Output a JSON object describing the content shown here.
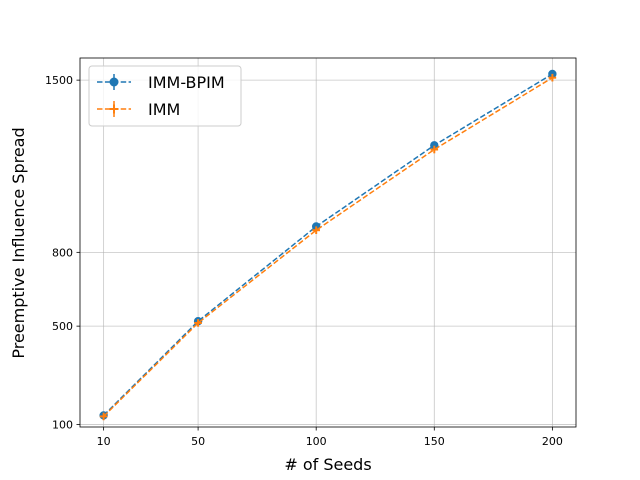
{
  "chart_data": {
    "type": "line",
    "title": "",
    "xlabel": "# of Seeds",
    "ylabel": "Preemptive Influence Spread",
    "x": [
      10,
      50,
      100,
      150,
      200
    ],
    "x_ticks": [
      "10",
      "50",
      "100",
      "150",
      "200"
    ],
    "y_ticks": [
      "100",
      "500",
      "800",
      "1500"
    ],
    "y_tick_values": [
      100,
      500,
      800,
      1500
    ],
    "xlim": [
      0,
      210
    ],
    "ylim": [
      90,
      1590
    ],
    "grid": true,
    "legend_position": "top-left",
    "series": [
      {
        "name": "IMM-BPIM",
        "values": [
          137,
          520,
          905,
          1235,
          1525
        ],
        "color": "#1f77b4",
        "marker": "circle",
        "linestyle": "dashed"
      },
      {
        "name": "IMM",
        "values": [
          133,
          513,
          890,
          1218,
          1510
        ],
        "color": "#ff7f0e",
        "marker": "plus",
        "linestyle": "dashed"
      }
    ]
  }
}
